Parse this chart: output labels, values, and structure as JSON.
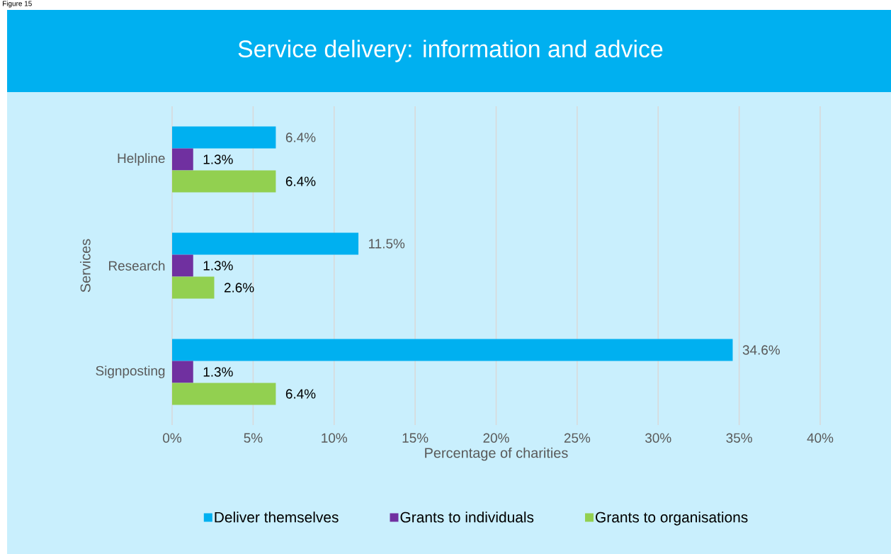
{
  "chart_data": {
    "type": "bar",
    "orientation": "horizontal",
    "title": "Service delivery: information and advice",
    "annotations": [
      "Figure 15"
    ],
    "xlabel": "Percentage of charities",
    "ylabel": "Services",
    "categories": [
      "Helpline",
      "Research",
      "Signposting"
    ],
    "series": [
      {
        "name": "Deliver themselves",
        "color": "#00b0f0",
        "values": [
          6.4,
          11.5,
          34.6
        ],
        "value_labels": [
          "6.4%",
          "11.5%",
          "34.6%"
        ]
      },
      {
        "name": "Grants to individuals",
        "color": "#7030a0",
        "values": [
          1.3,
          1.3,
          1.3
        ],
        "value_labels": [
          "1.3%",
          "1.3%",
          "1.3%"
        ]
      },
      {
        "name": "Grants to organisations",
        "color": "#92d050",
        "values": [
          6.4,
          2.6,
          6.4
        ],
        "value_labels": [
          "6.4%",
          "2.6%",
          "6.4%"
        ]
      }
    ],
    "xlim": [
      0,
      40
    ],
    "xticks": [
      {
        "value": 0,
        "label": "0%"
      },
      {
        "value": 5,
        "label": "5%"
      },
      {
        "value": 10,
        "label": "10%"
      },
      {
        "value": 15,
        "label": "15%"
      },
      {
        "value": 20,
        "label": "20%"
      },
      {
        "value": 25,
        "label": "25%"
      },
      {
        "value": 30,
        "label": "30%"
      },
      {
        "value": 35,
        "label": "35%"
      },
      {
        "value": 40,
        "label": "40%"
      }
    ],
    "grid": "x",
    "legend": "bottom"
  }
}
